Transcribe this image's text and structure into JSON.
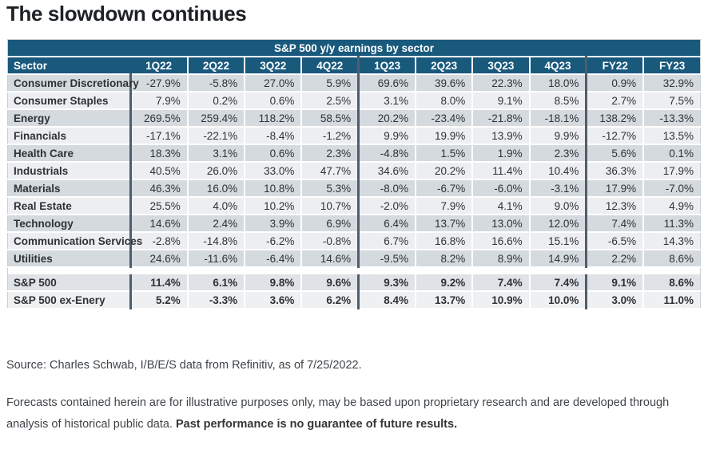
{
  "page": {
    "title": "The slowdown continues"
  },
  "chart_data": {
    "type": "table",
    "title": "S&P 500 y/y earnings by sector",
    "columns": [
      "Sector",
      "1Q22",
      "2Q22",
      "3Q22",
      "4Q22",
      "1Q23",
      "2Q23",
      "3Q23",
      "4Q23",
      "FY22",
      "FY23"
    ],
    "rows": [
      {
        "label": "Consumer Discretionary",
        "values": [
          "-27.9%",
          "-5.8%",
          "27.0%",
          "5.9%",
          "69.6%",
          "39.6%",
          "22.3%",
          "18.0%",
          "0.9%",
          "32.9%"
        ]
      },
      {
        "label": "Consumer Staples",
        "values": [
          "7.9%",
          "0.2%",
          "0.6%",
          "2.5%",
          "3.1%",
          "8.0%",
          "9.1%",
          "8.5%",
          "2.7%",
          "7.5%"
        ]
      },
      {
        "label": "Energy",
        "values": [
          "269.5%",
          "259.4%",
          "118.2%",
          "58.5%",
          "20.2%",
          "-23.4%",
          "-21.8%",
          "-18.1%",
          "138.2%",
          "-13.3%"
        ]
      },
      {
        "label": "Financials",
        "values": [
          "-17.1%",
          "-22.1%",
          "-8.4%",
          "-1.2%",
          "9.9%",
          "19.9%",
          "13.9%",
          "9.9%",
          "-12.7%",
          "13.5%"
        ]
      },
      {
        "label": "Health Care",
        "values": [
          "18.3%",
          "3.1%",
          "0.6%",
          "2.3%",
          "-4.8%",
          "1.5%",
          "1.9%",
          "2.3%",
          "5.6%",
          "0.1%"
        ]
      },
      {
        "label": "Industrials",
        "values": [
          "40.5%",
          "26.0%",
          "33.0%",
          "47.7%",
          "34.6%",
          "20.2%",
          "11.4%",
          "10.4%",
          "36.3%",
          "17.9%"
        ]
      },
      {
        "label": "Materials",
        "values": [
          "46.3%",
          "16.0%",
          "10.8%",
          "5.3%",
          "-8.0%",
          "-6.7%",
          "-6.0%",
          "-3.1%",
          "17.9%",
          "-7.0%"
        ]
      },
      {
        "label": "Real Estate",
        "values": [
          "25.5%",
          "4.0%",
          "10.2%",
          "10.7%",
          "-2.0%",
          "7.9%",
          "4.1%",
          "9.0%",
          "12.3%",
          "4.9%"
        ]
      },
      {
        "label": "Technology",
        "values": [
          "14.6%",
          "2.4%",
          "3.9%",
          "6.9%",
          "6.4%",
          "13.7%",
          "13.0%",
          "12.0%",
          "7.4%",
          "11.3%"
        ]
      },
      {
        "label": "Communication Services",
        "values": [
          "-2.8%",
          "-14.8%",
          "-6.2%",
          "-0.8%",
          "6.7%",
          "16.8%",
          "16.6%",
          "15.1%",
          "-6.5%",
          "14.3%"
        ]
      },
      {
        "label": "Utilities",
        "values": [
          "24.6%",
          "-11.6%",
          "-6.4%",
          "14.6%",
          "-9.5%",
          "8.2%",
          "8.9%",
          "14.9%",
          "2.2%",
          "8.6%"
        ]
      }
    ],
    "summary_rows": [
      {
        "label": "S&P 500",
        "values": [
          "11.4%",
          "6.1%",
          "9.8%",
          "9.6%",
          "9.3%",
          "9.2%",
          "7.4%",
          "7.4%",
          "9.1%",
          "8.6%"
        ]
      },
      {
        "label": "S&P 500 ex-Enery",
        "values": [
          "5.2%",
          "-3.3%",
          "3.6%",
          "6.2%",
          "8.4%",
          "13.7%",
          "10.9%",
          "10.0%",
          "3.0%",
          "11.0%"
        ]
      }
    ],
    "layout": {
      "header_color": "#19597c",
      "row_stripe_dark": "#d4dade",
      "row_stripe_light": "#eceef1",
      "divider_color": "#4f5e6a",
      "group_dividers_after": [
        "Sector",
        "4Q22",
        "4Q23"
      ]
    }
  },
  "footer": {
    "source": "Source: Charles Schwab, I/B/E/S data from Refinitiv, as of 7/25/2022.",
    "disclaimer": "Forecasts contained herein are for illustrative purposes only, may be based upon proprietary research and are developed through analysis of historical public data. ",
    "disclaimer_bold": "Past performance is no guarantee of future results."
  }
}
